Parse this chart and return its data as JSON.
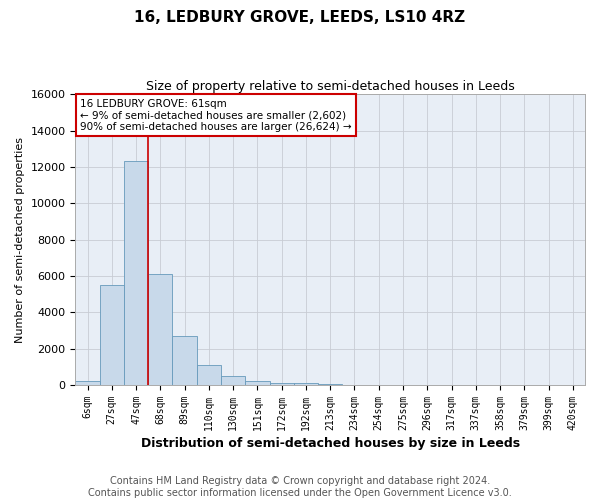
{
  "title": "16, LEDBURY GROVE, LEEDS, LS10 4RZ",
  "subtitle": "Size of property relative to semi-detached houses in Leeds",
  "xlabel": "Distribution of semi-detached houses by size in Leeds",
  "ylabel": "Number of semi-detached properties",
  "bar_labels": [
    "6sqm",
    "27sqm",
    "47sqm",
    "68sqm",
    "89sqm",
    "110sqm",
    "130sqm",
    "151sqm",
    "172sqm",
    "192sqm",
    "213sqm",
    "234sqm",
    "254sqm",
    "275sqm",
    "296sqm",
    "317sqm",
    "337sqm",
    "358sqm",
    "379sqm",
    "399sqm",
    "420sqm"
  ],
  "bar_values": [
    200,
    5500,
    12300,
    6100,
    2700,
    1100,
    500,
    200,
    130,
    100,
    60,
    0,
    0,
    0,
    0,
    0,
    0,
    0,
    0,
    0,
    0
  ],
  "bar_color": "#c8d9ea",
  "bar_edge_color": "#6699bb",
  "vline_color": "#cc0000",
  "vline_x": 2.5,
  "annotation_text": "16 LEDBURY GROVE: 61sqm\n← 9% of semi-detached houses are smaller (2,602)\n90% of semi-detached houses are larger (26,624) →",
  "annotation_box_facecolor": "white",
  "annotation_box_edgecolor": "#cc0000",
  "ylim": [
    0,
    16000
  ],
  "yticks": [
    0,
    2000,
    4000,
    6000,
    8000,
    10000,
    12000,
    14000,
    16000
  ],
  "grid_color": "#c8ccd4",
  "background_color": "#e8eef6",
  "footer_line1": "Contains HM Land Registry data © Crown copyright and database right 2024.",
  "footer_line2": "Contains public sector information licensed under the Open Government Licence v3.0.",
  "title_fontsize": 11,
  "subtitle_fontsize": 9,
  "footer_fontsize": 7,
  "annot_fontsize": 7.5,
  "ylabel_fontsize": 8,
  "xlabel_fontsize": 9,
  "xtick_fontsize": 7,
  "ytick_fontsize": 8
}
